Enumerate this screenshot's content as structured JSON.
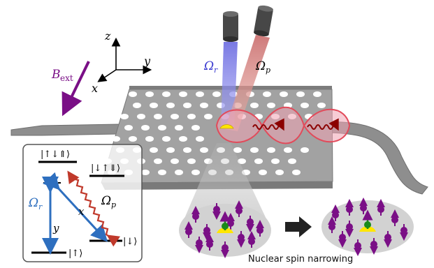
{
  "labels": {
    "b_ext": "B",
    "b_ext_sub": "ext",
    "axis_z": "z",
    "axis_y": "y",
    "axis_x": "x",
    "omega_r_main": "Ω",
    "omega_r_main_sub": "r",
    "omega_p_main": "Ω",
    "omega_p_main_sub": "p",
    "caption": "Nuclear spin narrowing"
  },
  "inset": {
    "state_top": "|↑↓⇑⟩",
    "state_mid": "|↓↑⇓⟩",
    "state_left_bottom": "|↑⟩",
    "state_right_bottom": "|↓⟩",
    "omega_r": "Ω",
    "omega_r_sub": "r",
    "omega_p": "Ω",
    "omega_p_sub": "p",
    "pol_x": "x",
    "pol_y": "y"
  },
  "colors": {
    "purple": "#7a0f86",
    "blue_arrow": "#2e6fbf",
    "red_arrow": "#c0392b",
    "dark_red": "#8b0000",
    "membrane": "#9a9a9a",
    "laser_blue": "#7f7fe6",
    "laser_red": "#d9827f",
    "cavity": "#e24a5a",
    "dot": "#ffe600",
    "green": "#1a8a1a"
  }
}
